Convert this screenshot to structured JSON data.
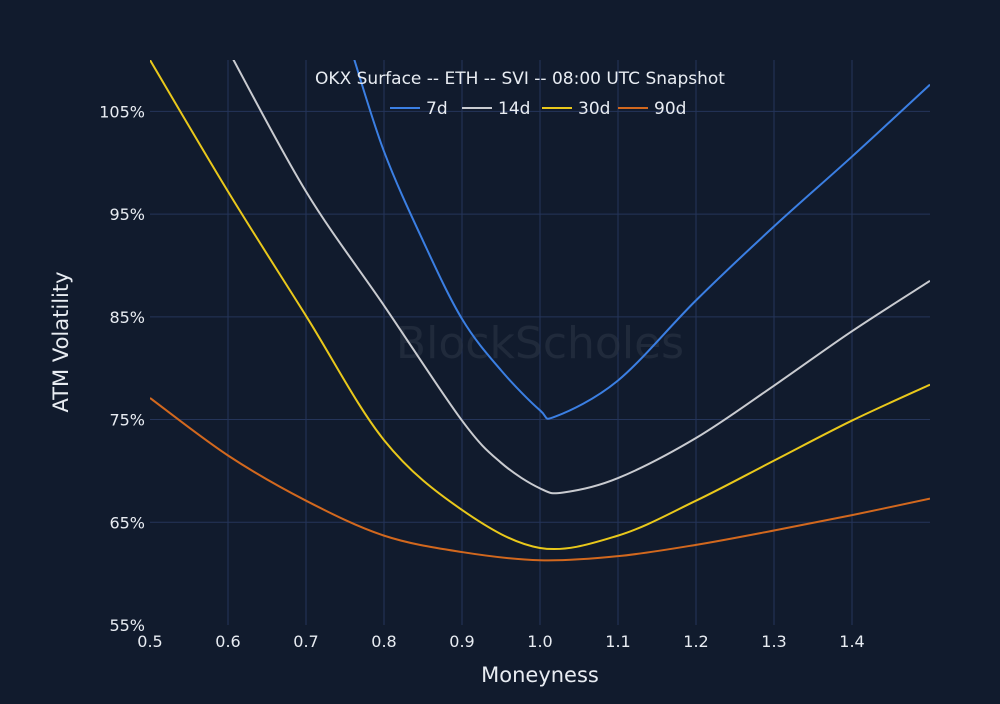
{
  "chart_data": {
    "type": "line",
    "title": "OKX Surface -- ETH -- SVI -- 08:00 UTC Snapshot",
    "xlabel": "Moneyness",
    "ylabel": "ATM Volatility",
    "watermark": "BlockScholes",
    "xlim": [
      0.5,
      1.5
    ],
    "ylim": [
      55,
      110
    ],
    "xticks": [
      "0.5",
      "0.6",
      "0.7",
      "0.8",
      "0.9",
      "1.0",
      "1.1",
      "1.2",
      "1.3",
      "1.4"
    ],
    "yticks": [
      "55%",
      "65%",
      "75%",
      "85%",
      "95%",
      "105%"
    ],
    "grid": true,
    "legend_position": "top-center",
    "background": "#111b2d",
    "series": [
      {
        "name": "7d",
        "color": "#3b7fe3",
        "x": [
          0.76,
          0.8,
          0.85,
          0.9,
          0.95,
          1.0,
          1.02,
          1.1,
          1.2,
          1.3,
          1.4,
          1.5
        ],
        "y": [
          110.5,
          101.1,
          92.4,
          84.8,
          79.8,
          75.9,
          75.3,
          78.8,
          86.6,
          93.8,
          100.6,
          107.6
        ]
      },
      {
        "name": "14d",
        "color": "#c9cbd0",
        "x": [
          0.6,
          0.7,
          0.8,
          0.9,
          0.95,
          1.0,
          1.03,
          1.1,
          1.2,
          1.3,
          1.4,
          1.5
        ],
        "y": [
          111,
          97.2,
          86.1,
          74.9,
          70.8,
          68.3,
          67.9,
          69.3,
          73.2,
          78.3,
          83.6,
          88.5
        ]
      },
      {
        "name": "30d",
        "color": "#e9c81b",
        "x": [
          0.5,
          0.6,
          0.7,
          0.8,
          0.9,
          1.0,
          1.1,
          1.2,
          1.3,
          1.4,
          1.5
        ],
        "y": [
          110,
          97.2,
          85.1,
          73,
          66.2,
          62.5,
          63.7,
          67.1,
          71,
          74.9,
          78.4
        ]
      },
      {
        "name": "90d",
        "color": "#d2681e",
        "x": [
          0.5,
          0.6,
          0.7,
          0.8,
          0.9,
          1.0,
          1.1,
          1.2,
          1.3,
          1.4,
          1.5
        ],
        "y": [
          77.1,
          71.5,
          67.1,
          63.7,
          62.1,
          61.3,
          61.7,
          62.8,
          64.2,
          65.7,
          67.3
        ]
      }
    ]
  }
}
